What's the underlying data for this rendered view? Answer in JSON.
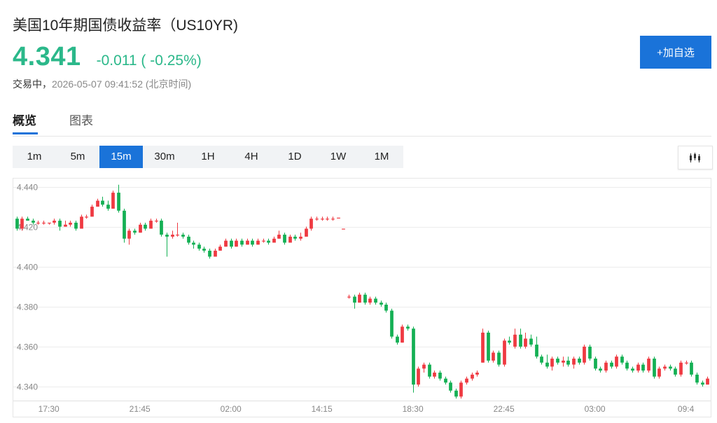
{
  "header": {
    "title": "美国10年期国债收益率（US10YR)",
    "price": "4.341",
    "change": "-0.011 ( -0.25%)",
    "status_prefix": "交易中，",
    "timestamp": "2026-05-07 09:41:52 (北京时间)",
    "add_button": "+加自选"
  },
  "tabs": [
    {
      "label": "概览",
      "active": true
    },
    {
      "label": "图表",
      "active": false
    }
  ],
  "intervals": [
    {
      "label": "1m",
      "active": false
    },
    {
      "label": "5m",
      "active": false
    },
    {
      "label": "15m",
      "active": true
    },
    {
      "label": "30m",
      "active": false
    },
    {
      "label": "1H",
      "active": false
    },
    {
      "label": "4H",
      "active": false
    },
    {
      "label": "1D",
      "active": false
    },
    {
      "label": "1W",
      "active": false
    },
    {
      "label": "1M",
      "active": false
    }
  ],
  "chart_type_icon": "candlestick-icon",
  "colors": {
    "accent": "#1a73d9",
    "up": "#ef3a42",
    "down": "#14b054",
    "price": "#2bb88a",
    "grid": "#ececec"
  },
  "chart_data": {
    "type": "candlestick",
    "ylim": [
      4.333,
      4.443
    ],
    "yticks": [
      "4.440",
      "4.420",
      "4.400",
      "4.380",
      "4.360",
      "4.340"
    ],
    "xticks": [
      {
        "label": "17:30",
        "index": 6
      },
      {
        "label": "21:45",
        "index": 23
      },
      {
        "label": "02:00",
        "index": 40
      },
      {
        "label": "14:15",
        "index": 57
      },
      {
        "label": "18:30",
        "index": 74
      },
      {
        "label": "22:45",
        "index": 91
      },
      {
        "label": "03:00",
        "index": 108
      },
      {
        "label": "09:4",
        "index": 125
      }
    ],
    "candles": [
      [
        4.424,
        4.425,
        4.418,
        4.419
      ],
      [
        4.419,
        4.425,
        4.418,
        4.424
      ],
      [
        4.424,
        4.425,
        4.423,
        4.423
      ],
      [
        4.423,
        4.424,
        4.421,
        4.422
      ],
      [
        4.422,
        4.423,
        4.421,
        4.422
      ],
      [
        4.422,
        4.423,
        4.421,
        4.422
      ],
      [
        4.422,
        4.422,
        4.421,
        4.422
      ],
      [
        4.422,
        4.424,
        4.421,
        4.423
      ],
      [
        4.423,
        4.424,
        4.418,
        4.42
      ],
      [
        4.42,
        4.423,
        4.42,
        4.421
      ],
      [
        4.421,
        4.423,
        4.42,
        4.422
      ],
      [
        4.422,
        4.423,
        4.418,
        4.419
      ],
      [
        4.419,
        4.426,
        4.419,
        4.425
      ],
      [
        4.425,
        4.426,
        4.424,
        4.425
      ],
      [
        4.425,
        4.431,
        4.425,
        4.43
      ],
      [
        4.43,
        4.434,
        4.43,
        4.433
      ],
      [
        4.433,
        4.435,
        4.43,
        4.431
      ],
      [
        4.431,
        4.433,
        4.428,
        4.429
      ],
      [
        4.429,
        4.438,
        4.429,
        4.437
      ],
      [
        4.437,
        4.441,
        4.427,
        4.428
      ],
      [
        4.428,
        4.429,
        4.412,
        4.414
      ],
      [
        4.414,
        4.419,
        4.411,
        4.418
      ],
      [
        4.418,
        4.419,
        4.416,
        4.417
      ],
      [
        4.417,
        4.422,
        4.417,
        4.421
      ],
      [
        4.421,
        4.422,
        4.418,
        4.419
      ],
      [
        4.419,
        4.424,
        4.419,
        4.423
      ],
      [
        4.423,
        4.424,
        4.422,
        4.423
      ],
      [
        4.423,
        4.424,
        4.415,
        4.416
      ],
      [
        4.416,
        4.417,
        4.405,
        4.415
      ],
      [
        4.415,
        4.418,
        4.414,
        4.416
      ],
      [
        4.416,
        4.422,
        4.415,
        4.416
      ],
      [
        4.416,
        4.417,
        4.414,
        4.415
      ],
      [
        4.415,
        4.416,
        4.411,
        4.412
      ],
      [
        4.412,
        4.413,
        4.409,
        4.411
      ],
      [
        4.411,
        4.412,
        4.408,
        4.409
      ],
      [
        4.409,
        4.41,
        4.407,
        4.408
      ],
      [
        4.408,
        4.409,
        4.404,
        4.405
      ],
      [
        4.405,
        4.409,
        4.405,
        4.408
      ],
      [
        4.408,
        4.411,
        4.408,
        4.41
      ],
      [
        4.41,
        4.414,
        4.41,
        4.413
      ],
      [
        4.413,
        4.414,
        4.409,
        4.41
      ],
      [
        4.41,
        4.414,
        4.41,
        4.413
      ],
      [
        4.413,
        4.414,
        4.41,
        4.411
      ],
      [
        4.411,
        4.414,
        4.411,
        4.413
      ],
      [
        4.413,
        4.414,
        4.41,
        4.411
      ],
      [
        4.411,
        4.414,
        4.411,
        4.413
      ],
      [
        4.413,
        4.414,
        4.412,
        4.413
      ],
      [
        4.413,
        4.414,
        4.411,
        4.412
      ],
      [
        4.412,
        4.415,
        4.412,
        4.414
      ],
      [
        4.414,
        4.418,
        4.414,
        4.416
      ],
      [
        4.416,
        4.417,
        4.411,
        4.412
      ],
      [
        4.412,
        4.416,
        4.412,
        4.415
      ],
      [
        4.415,
        4.416,
        4.413,
        4.414
      ],
      [
        4.414,
        4.417,
        4.413,
        4.415
      ],
      [
        4.415,
        4.42,
        4.415,
        4.419
      ],
      [
        4.419,
        4.425,
        4.418,
        4.424
      ],
      [
        4.424,
        4.425,
        4.423,
        4.424
      ],
      [
        4.424,
        4.425,
        4.423,
        4.424
      ],
      [
        4.424,
        4.425,
        4.423,
        4.424
      ],
      [
        4.424,
        4.425,
        4.423,
        4.424
      ],
      [
        4.4245,
        4.4245,
        4.4245,
        4.4245
      ],
      [
        4.419,
        4.419,
        4.419,
        4.419
      ],
      [
        4.385,
        4.386,
        4.384,
        4.385
      ],
      [
        4.385,
        4.386,
        4.379,
        4.382
      ],
      [
        4.382,
        4.387,
        4.382,
        4.386
      ],
      [
        4.386,
        4.387,
        4.381,
        4.382
      ],
      [
        4.382,
        4.385,
        4.381,
        4.384
      ],
      [
        4.384,
        4.385,
        4.381,
        4.382
      ],
      [
        4.382,
        4.383,
        4.38,
        4.381
      ],
      [
        4.381,
        4.382,
        4.377,
        4.378
      ],
      [
        4.378,
        4.379,
        4.364,
        4.365
      ],
      [
        4.365,
        4.366,
        4.361,
        4.362
      ],
      [
        4.362,
        4.371,
        4.362,
        4.37
      ],
      [
        4.37,
        4.371,
        4.368,
        4.369
      ],
      [
        4.369,
        4.37,
        4.337,
        4.341
      ],
      [
        4.341,
        4.35,
        4.34,
        4.349
      ],
      [
        4.349,
        4.352,
        4.347,
        4.351
      ],
      [
        4.351,
        4.352,
        4.344,
        4.345
      ],
      [
        4.345,
        4.348,
        4.344,
        4.347
      ],
      [
        4.347,
        4.348,
        4.343,
        4.344
      ],
      [
        4.344,
        4.345,
        4.341,
        4.342
      ],
      [
        4.342,
        4.343,
        4.337,
        4.338
      ],
      [
        4.338,
        4.339,
        4.334,
        4.335
      ],
      [
        4.335,
        4.343,
        4.334,
        4.342
      ],
      [
        4.342,
        4.345,
        4.341,
        4.344
      ],
      [
        4.344,
        4.347,
        4.343,
        4.346
      ],
      [
        4.346,
        4.348,
        4.345,
        4.347
      ],
      [
        4.352,
        4.369,
        4.352,
        4.367
      ],
      [
        4.367,
        4.368,
        4.352,
        4.353
      ],
      [
        4.353,
        4.358,
        4.352,
        4.357
      ],
      [
        4.357,
        4.358,
        4.35,
        4.351
      ],
      [
        4.351,
        4.364,
        4.35,
        4.363
      ],
      [
        4.363,
        4.365,
        4.361,
        4.362
      ],
      [
        4.36,
        4.369,
        4.359,
        4.366
      ],
      [
        4.366,
        4.369,
        4.359,
        4.36
      ],
      [
        4.36,
        4.367,
        4.359,
        4.364
      ],
      [
        4.364,
        4.366,
        4.36,
        4.361
      ],
      [
        4.361,
        4.365,
        4.354,
        4.355
      ],
      [
        4.355,
        4.356,
        4.351,
        4.352
      ],
      [
        4.352,
        4.356,
        4.349,
        4.35
      ],
      [
        4.35,
        4.355,
        4.348,
        4.354
      ],
      [
        4.354,
        4.355,
        4.351,
        4.352
      ],
      [
        4.352,
        4.355,
        4.35,
        4.353
      ],
      [
        4.353,
        4.355,
        4.35,
        4.351
      ],
      [
        4.351,
        4.355,
        4.349,
        4.354
      ],
      [
        4.354,
        4.355,
        4.351,
        4.352
      ],
      [
        4.352,
        4.361,
        4.351,
        4.36
      ],
      [
        4.36,
        4.361,
        4.353,
        4.354
      ],
      [
        4.354,
        4.355,
        4.348,
        4.349
      ],
      [
        4.349,
        4.35,
        4.347,
        4.348
      ],
      [
        4.348,
        4.353,
        4.347,
        4.352
      ],
      [
        4.352,
        4.353,
        4.349,
        4.35
      ],
      [
        4.35,
        4.356,
        4.349,
        4.355
      ],
      [
        4.355,
        4.356,
        4.351,
        4.352
      ],
      [
        4.352,
        4.353,
        4.348,
        4.349
      ],
      [
        4.349,
        4.35,
        4.347,
        4.348
      ],
      [
        4.348,
        4.352,
        4.347,
        4.351
      ],
      [
        4.351,
        4.352,
        4.347,
        4.348
      ],
      [
        4.348,
        4.355,
        4.347,
        4.354
      ],
      [
        4.354,
        4.355,
        4.344,
        4.345
      ],
      [
        4.345,
        4.35,
        4.344,
        4.349
      ],
      [
        4.349,
        4.351,
        4.348,
        4.35
      ],
      [
        4.35,
        4.351,
        4.348,
        4.349
      ],
      [
        4.349,
        4.35,
        4.345,
        4.346
      ],
      [
        4.346,
        4.353,
        4.345,
        4.352
      ],
      [
        4.352,
        4.353,
        4.351,
        4.352
      ],
      [
        4.352,
        4.353,
        4.345,
        4.346
      ],
      [
        4.346,
        4.347,
        4.341,
        4.342
      ],
      [
        4.342,
        4.343,
        4.34,
        4.341
      ],
      [
        4.341,
        4.345,
        4.341,
        4.344
      ]
    ]
  }
}
